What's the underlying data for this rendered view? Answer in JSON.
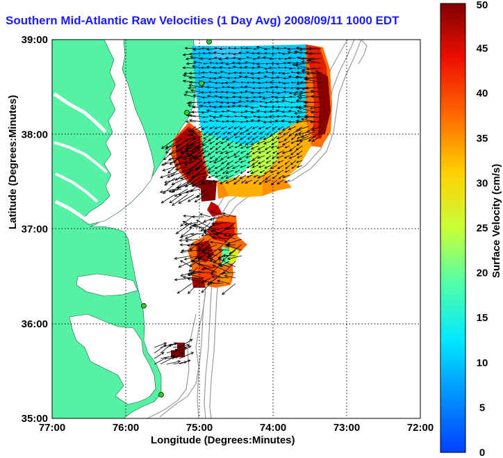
{
  "title": "Southern Mid-Atlantic Raw Velocities (1 Day Avg) 2008/09/11 1000 EDT",
  "axes": {
    "xlabel": "Longitude (Degrees:Minutes)",
    "ylabel": "Latitude (Degrees:Minutes)",
    "xticks": [
      "77:00",
      "76:00",
      "75:00",
      "74:00",
      "73:00",
      "72:00"
    ],
    "yticks": [
      "39:00",
      "38:00",
      "37:00",
      "36:00",
      "35:00"
    ],
    "grid": "dotted"
  },
  "colorbar": {
    "label": "Surface Velocity (cm/s)",
    "ticks": [
      "0",
      "5",
      "10",
      "15",
      "20",
      "25",
      "30",
      "35",
      "40",
      "45",
      "50"
    ],
    "min": 0,
    "max": 50,
    "colormap": "jet"
  },
  "colors": {
    "land": "#55f2a4",
    "title": "#1a1aff",
    "bathymetry": "#9a9a9a",
    "station": "#33cc33"
  }
}
